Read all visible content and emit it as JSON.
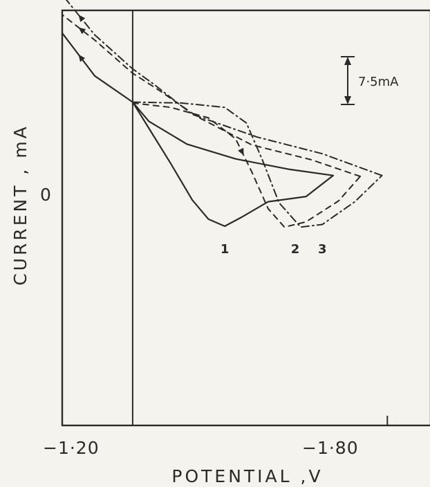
{
  "chart_data": {
    "type": "line",
    "title": "",
    "xlabel": "POTENTIAL ,V",
    "ylabel": "CURRENT , mA",
    "x_ticks": [
      {
        "value": -1.2,
        "label": "−1·20"
      },
      {
        "value": -1.8,
        "label": "−1·80"
      }
    ],
    "y_ticks": [
      {
        "value": 0,
        "label": "0"
      }
    ],
    "xlim": [
      -1.2,
      -1.88
    ],
    "ylim": [
      -37,
      10.5
    ],
    "x_axis_reversed": true,
    "vertical_reference_line_x": -1.33,
    "scale_bar": {
      "value": 7.5,
      "label": "7·5mA"
    },
    "grid": false,
    "legend": "none",
    "series": [
      {
        "label": "1",
        "style": "solid",
        "label_anchor": {
          "x": -1.5,
          "y": -17.3
        },
        "forward": [
          {
            "x": -1.33,
            "y": 0.0
          },
          {
            "x": -1.36,
            "y": -3.0
          },
          {
            "x": -1.4,
            "y": -7.0
          },
          {
            "x": -1.44,
            "y": -11.2
          },
          {
            "x": -1.47,
            "y": -13.4
          },
          {
            "x": -1.5,
            "y": -14.2
          },
          {
            "x": -1.53,
            "y": -13.2
          },
          {
            "x": -1.58,
            "y": -11.4
          },
          {
            "x": -1.65,
            "y": -10.8
          },
          {
            "x": -1.7,
            "y": -8.4
          }
        ],
        "reverse": [
          {
            "x": -1.7,
            "y": -8.4
          },
          {
            "x": -1.62,
            "y": -7.7
          },
          {
            "x": -1.52,
            "y": -6.5
          },
          {
            "x": -1.43,
            "y": -4.8
          },
          {
            "x": -1.36,
            "y": -2.2
          },
          {
            "x": -1.33,
            "y": 0.0
          },
          {
            "x": -1.26,
            "y": 3.0
          },
          {
            "x": -1.2,
            "y": 7.9
          }
        ]
      },
      {
        "label": "2",
        "style": "dashed",
        "label_anchor": {
          "x": -1.63,
          "y": -17.3
        },
        "forward": [
          {
            "x": -1.33,
            "y": -0.1
          },
          {
            "x": -1.4,
            "y": -0.6
          },
          {
            "x": -1.47,
            "y": -1.8
          },
          {
            "x": -1.52,
            "y": -4.2
          },
          {
            "x": -1.55,
            "y": -8.0
          },
          {
            "x": -1.58,
            "y": -12.2
          },
          {
            "x": -1.61,
            "y": -14.3
          },
          {
            "x": -1.65,
            "y": -13.7
          },
          {
            "x": -1.71,
            "y": -11.3
          },
          {
            "x": -1.75,
            "y": -8.5
          }
        ],
        "reverse": [
          {
            "x": -1.75,
            "y": -8.5
          },
          {
            "x": -1.66,
            "y": -6.6
          },
          {
            "x": -1.55,
            "y": -4.9
          },
          {
            "x": -1.45,
            "y": -1.7
          },
          {
            "x": -1.38,
            "y": 1.3
          },
          {
            "x": -1.33,
            "y": 3.3
          },
          {
            "x": -1.26,
            "y": 7.1
          },
          {
            "x": -1.2,
            "y": 10.0
          }
        ]
      },
      {
        "label": "3",
        "style": "dash-dot",
        "label_anchor": {
          "x": -1.68,
          "y": -17.3
        },
        "forward": [
          {
            "x": -1.33,
            "y": 0.0
          },
          {
            "x": -1.42,
            "y": -0.1
          },
          {
            "x": -1.5,
            "y": -0.6
          },
          {
            "x": -1.54,
            "y": -2.4
          },
          {
            "x": -1.57,
            "y": -6.7
          },
          {
            "x": -1.6,
            "y": -11.5
          },
          {
            "x": -1.64,
            "y": -14.3
          },
          {
            "x": -1.68,
            "y": -14.0
          },
          {
            "x": -1.74,
            "y": -11.4
          },
          {
            "x": -1.79,
            "y": -8.4
          }
        ],
        "reverse": [
          {
            "x": -1.79,
            "y": -8.4
          },
          {
            "x": -1.68,
            "y": -5.9
          },
          {
            "x": -1.56,
            "y": -4.0
          },
          {
            "x": -1.44,
            "y": -1.4
          },
          {
            "x": -1.37,
            "y": 2.0
          },
          {
            "x": -1.33,
            "y": 3.8
          },
          {
            "x": -1.26,
            "y": 7.7
          },
          {
            "x": -1.2,
            "y": 12.3
          }
        ]
      }
    ]
  }
}
